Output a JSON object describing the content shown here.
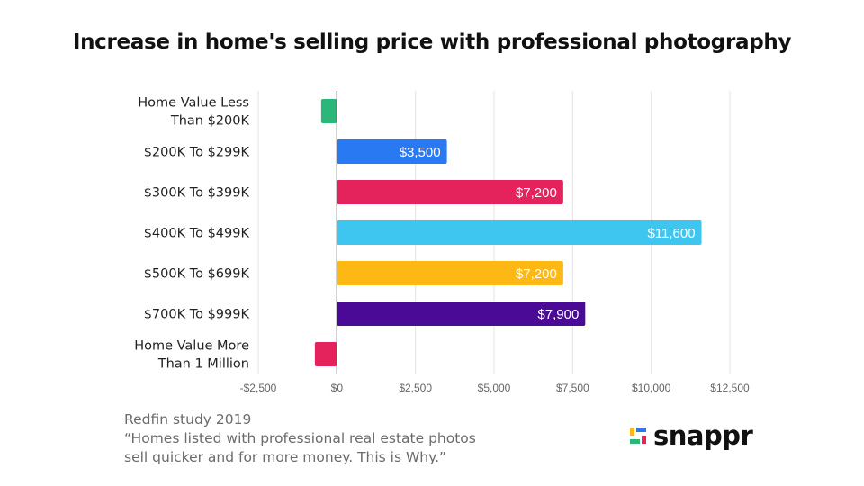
{
  "title": "Increase in home's selling price with professional photography",
  "chart_data": {
    "type": "bar",
    "orientation": "horizontal",
    "title": "Increase in home's selling price with professional photography",
    "xlabel": "",
    "ylabel": "",
    "xlim": [
      -2500,
      12500
    ],
    "grid": true,
    "x_ticks": [
      -2500,
      0,
      2500,
      5000,
      7500,
      10000,
      12500
    ],
    "x_tick_labels": [
      "-$2,500",
      "$0",
      "$2,500",
      "$5,000",
      "$7,500",
      "$10,000",
      "$12,500"
    ],
    "categories": [
      [
        "Home Value Less",
        "Than $200K"
      ],
      [
        "$200K To $299K"
      ],
      [
        "$300K To $399K"
      ],
      [
        "$400K To $499K"
      ],
      [
        "$500K To $699K"
      ],
      [
        "$700K To $999K"
      ],
      [
        "Home Value More",
        "Than 1 Million"
      ]
    ],
    "values": [
      -500,
      3500,
      7200,
      11600,
      7200,
      7900,
      -700
    ],
    "data_labels": [
      "",
      "$3,500",
      "$7,200",
      "$11,600",
      "$7,200",
      "$7,900",
      ""
    ],
    "colors": [
      "#2bb67a",
      "#2979f3",
      "#e4225c",
      "#3ec6f0",
      "#fdb813",
      "#4b0a96",
      "#e4225c"
    ]
  },
  "source": {
    "line1": "Redfin study 2019",
    "line2": "“Homes listed with professional real estate photos",
    "line3": "sell quicker and for more money. This is Why.”"
  },
  "logo": {
    "text": "snappr",
    "mark_colors": [
      "#2979f3",
      "#fdb813",
      "#e4225c",
      "#2bb67a"
    ]
  }
}
